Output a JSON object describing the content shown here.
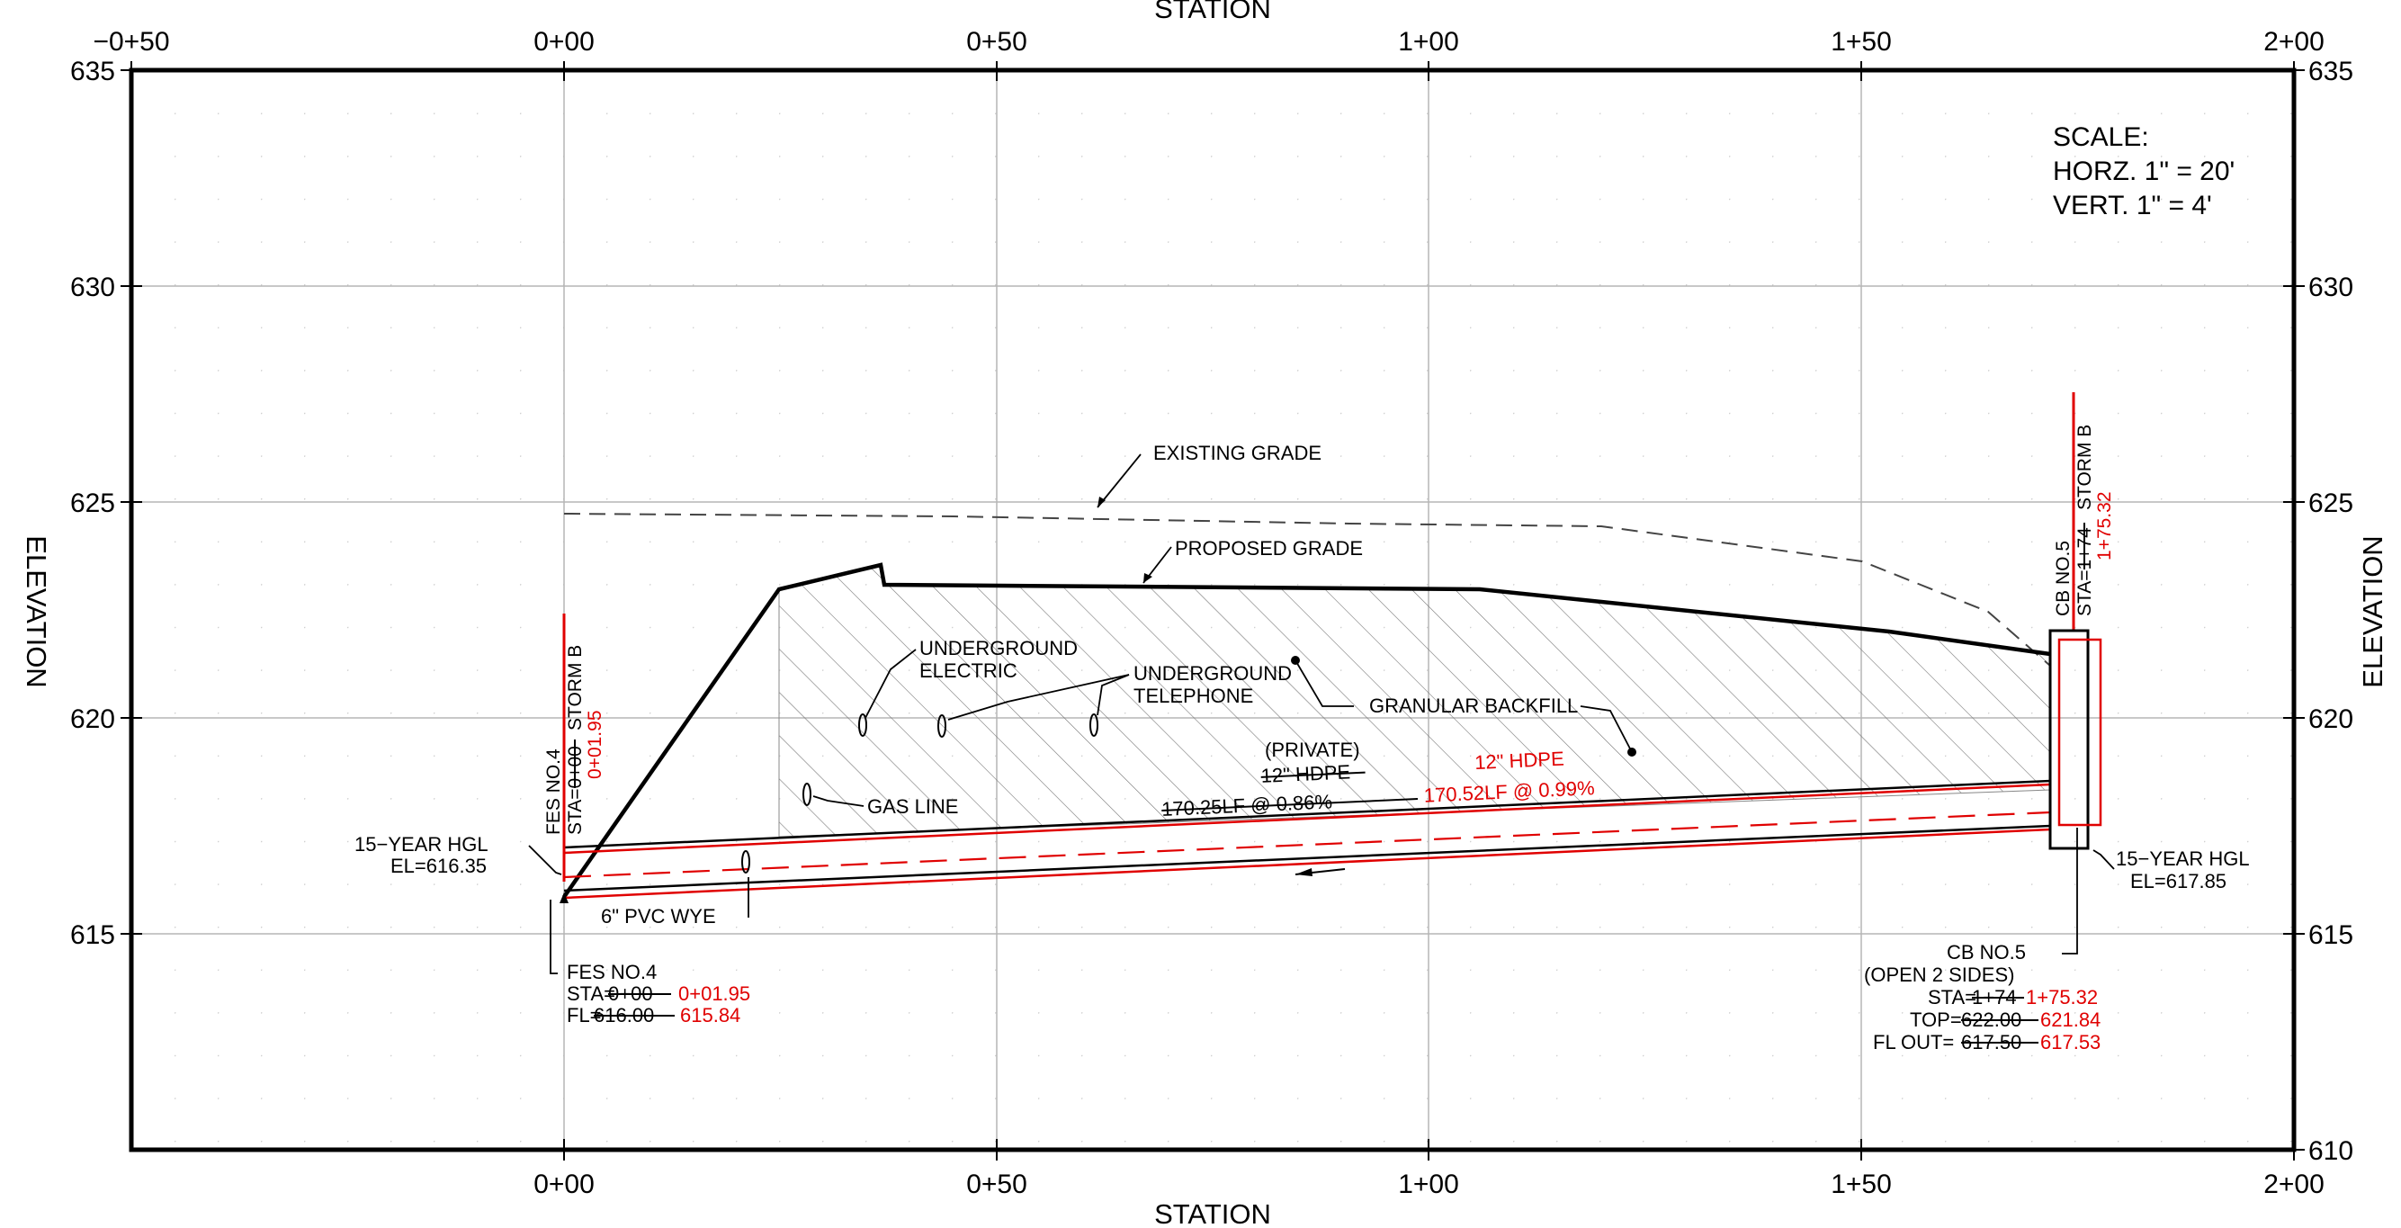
{
  "axes": {
    "x_title_top": "STATION",
    "x_title_bottom": "STATION",
    "y_title_left": "ELEVATION",
    "y_title_right": "ELEVATION",
    "x_ticks": [
      "−0+50",
      "0+00",
      "0+50",
      "1+00",
      "1+50",
      "2+00"
    ],
    "x_ticks_bottom": [
      "0+00",
      "0+50",
      "1+00",
      "1+50",
      "2+00"
    ],
    "y_ticks": [
      "635",
      "630",
      "625",
      "620",
      "615",
      "610"
    ],
    "y_ticks_left": [
      "635",
      "630",
      "625",
      "620",
      "615"
    ],
    "x_range_ft": [
      -50,
      200
    ],
    "y_range_ft": [
      610,
      635
    ]
  },
  "scale_note": {
    "line1": "SCALE:",
    "line2": "HORZ. 1\" = 20'",
    "line3": "VERT. 1\" = 4'"
  },
  "labels": {
    "existing_grade": "EXISTING GRADE",
    "proposed_grade": "PROPOSED GRADE",
    "ug_electric_1": "UNDERGROUND",
    "ug_electric_2": "ELECTRIC",
    "ug_telephone_1": "UNDERGROUND",
    "ug_telephone_2": "TELEPHONE",
    "granular_backfill": "GRANULAR BACKFILL",
    "gas_line": "GAS LINE",
    "pvc_wye": "6\" PVC WYE",
    "private": "(PRIVATE)",
    "pipe_old_1": "12\" HDPE",
    "pipe_old_2": "170.25LF @ 0.86%",
    "pipe_new_1": "12\" HDPE",
    "pipe_new_2": "170.52LF @ 0.99%",
    "hgl_left_1": "15−YEAR HGL",
    "hgl_left_2": "EL=616.35",
    "hgl_right_1": "15−YEAR HGL",
    "hgl_right_2": "EL=617.85",
    "fes_v_name": "FES NO.4",
    "fes_v_sta_old": "STA=0+00",
    "fes_v_storm": "STORM B",
    "fes_v_sta_new": "0+01.95",
    "fes_name": "FES NO.4",
    "fes_sta_prefix": "STA=",
    "fes_sta_old": "0+00",
    "fes_sta_new": "0+01.95",
    "fes_fl_prefix": "FL=",
    "fes_fl_old": "616.00",
    "fes_fl_new": "615.84",
    "cb_v_name": "CB NO.5",
    "cb_v_sta_old": "STA=1+74",
    "cb_v_storm": "STORM B",
    "cb_v_sta_new": "1+75.32",
    "cb_name": "CB NO.5",
    "cb_open": "(OPEN 2 SIDES)",
    "cb_sta_prefix": "STA=",
    "cb_sta_old": "1+74",
    "cb_sta_new": "1+75.32",
    "cb_top_prefix": "TOP=",
    "cb_top_old": "622.00",
    "cb_top_new": "621.84",
    "cb_fl_prefix": "FL OUT=",
    "cb_fl_old": "617.50",
    "cb_fl_new": "617.53"
  },
  "colors": {
    "ink": "#000000",
    "revision": "#e00000",
    "grid": "#b5b5b5"
  }
}
